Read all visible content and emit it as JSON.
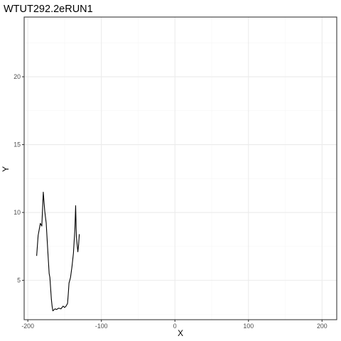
{
  "chart_data": {
    "type": "line",
    "title": "WTUT292.2eRUN1",
    "xlabel": "X",
    "ylabel": "Y",
    "xlim": [
      -205,
      220
    ],
    "ylim": [
      2.1,
      24.4
    ],
    "x_ticks": [
      -200,
      -100,
      0,
      100,
      200
    ],
    "x_tick_labels": [
      "-200",
      "-100",
      "0",
      "100",
      "200"
    ],
    "y_ticks": [
      5,
      10,
      15,
      20
    ],
    "y_tick_labels": [
      "5",
      "10",
      "15",
      "20"
    ],
    "grid": true,
    "legend": "none",
    "series": [
      {
        "color": "#000000",
        "x": [
          -188,
          -186,
          -183,
          -181,
          -179,
          -177,
          -175,
          -173,
          -171,
          -170,
          -168,
          -167,
          -166,
          -165,
          -163,
          -161,
          -158,
          -155,
          -152,
          -150,
          -148,
          -146,
          -145,
          -144,
          -142,
          -140,
          -138,
          -136,
          -135,
          -134,
          -132,
          -131,
          -130
        ],
        "y": [
          6.8,
          8.3,
          9.2,
          9.0,
          11.5,
          10.1,
          9.2,
          7.3,
          5.5,
          5.2,
          3.6,
          3.1,
          2.75,
          2.8,
          2.9,
          2.85,
          2.95,
          2.9,
          3.1,
          3.0,
          3.1,
          3.3,
          4.0,
          4.8,
          5.2,
          6.0,
          7.0,
          8.8,
          10.5,
          8.2,
          7.1,
          7.6,
          8.4
        ]
      }
    ]
  },
  "colors": {
    "background": "#ffffff",
    "panel_border": "#333333",
    "grid_major": "#ebebeb",
    "grid_minor": "#f5f5f5",
    "line": "#000000"
  }
}
